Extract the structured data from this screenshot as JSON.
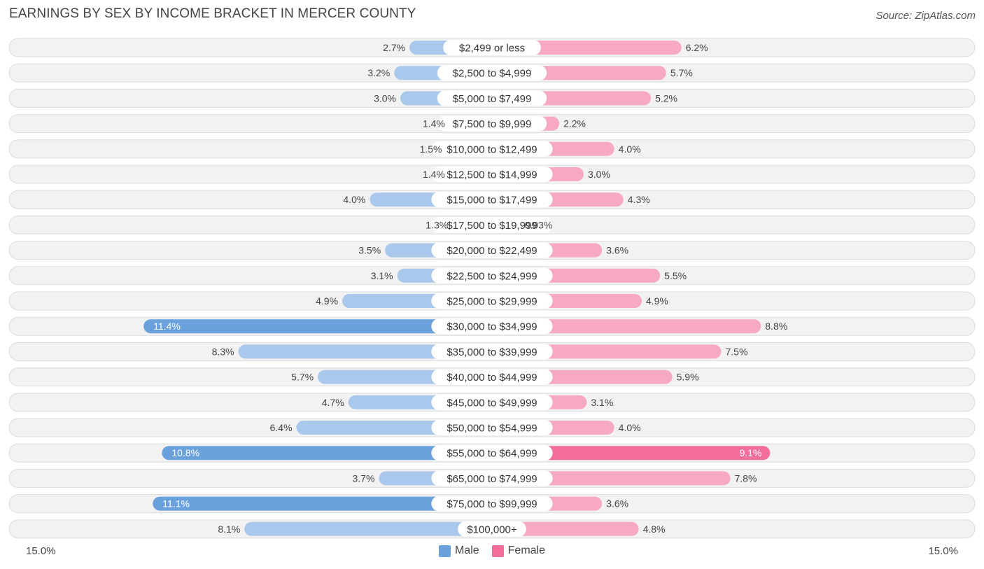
{
  "header": {
    "title": "EARNINGS BY SEX BY INCOME BRACKET IN MERCER COUNTY",
    "source": "Source: ZipAtlas.com"
  },
  "axis": {
    "left_label": "15.0%",
    "right_label": "15.0%"
  },
  "legend": {
    "male_label": "Male",
    "female_label": "Female"
  },
  "colors": {
    "male_dark": "#6aa1dd",
    "male_light": "#a9c8ec",
    "female_dark": "#f26e98",
    "female_light": "#f7a9c2",
    "row_bg": "#f2f2f2",
    "row_border": "#dcdcdc"
  },
  "chart_data": {
    "type": "bar",
    "orientation": "horizontal-diverging",
    "title": "EARNINGS BY SEX BY INCOME BRACKET IN MERCER COUNTY",
    "xlim": [
      -15.0,
      15.0
    ],
    "unit": "%",
    "categories": [
      "$2,499 or less",
      "$2,500 to $4,999",
      "$5,000 to $7,499",
      "$7,500 to $9,999",
      "$10,000 to $12,499",
      "$12,500 to $14,999",
      "$15,000 to $17,499",
      "$17,500 to $19,999",
      "$20,000 to $22,499",
      "$22,500 to $24,999",
      "$25,000 to $29,999",
      "$30,000 to $34,999",
      "$35,000 to $39,999",
      "$40,000 to $44,999",
      "$45,000 to $49,999",
      "$50,000 to $54,999",
      "$55,000 to $64,999",
      "$65,000 to $74,999",
      "$75,000 to $99,999",
      "$100,000+"
    ],
    "series": [
      {
        "name": "Male",
        "values": [
          2.7,
          3.2,
          3.0,
          1.4,
          1.5,
          1.4,
          4.0,
          1.3,
          3.5,
          3.1,
          4.9,
          11.4,
          8.3,
          5.7,
          4.7,
          6.4,
          10.8,
          3.7,
          11.1,
          8.1
        ],
        "labels": [
          "2.7%",
          "3.2%",
          "3.0%",
          "1.4%",
          "1.5%",
          "1.4%",
          "4.0%",
          "1.3%",
          "3.5%",
          "3.1%",
          "4.9%",
          "11.4%",
          "8.3%",
          "5.7%",
          "4.7%",
          "6.4%",
          "10.8%",
          "3.7%",
          "11.1%",
          "8.1%"
        ]
      },
      {
        "name": "Female",
        "values": [
          6.2,
          5.7,
          5.2,
          2.2,
          4.0,
          3.0,
          4.3,
          0.93,
          3.6,
          5.5,
          4.9,
          8.8,
          7.5,
          5.9,
          3.1,
          4.0,
          9.1,
          7.8,
          3.6,
          4.8
        ],
        "labels": [
          "6.2%",
          "5.7%",
          "5.2%",
          "2.2%",
          "4.0%",
          "3.0%",
          "4.3%",
          "0.93%",
          "3.6%",
          "5.5%",
          "4.9%",
          "8.8%",
          "7.5%",
          "5.9%",
          "3.1%",
          "4.0%",
          "9.1%",
          "7.8%",
          "3.6%",
          "4.8%"
        ]
      }
    ]
  }
}
